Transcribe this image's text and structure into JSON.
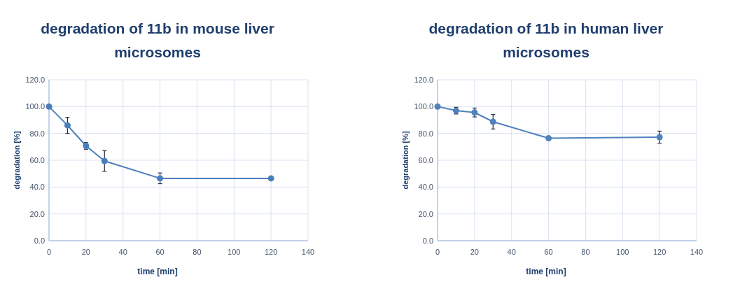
{
  "chart_data": [
    {
      "type": "line",
      "title": "degradation of 11b in mouse liver microsomes",
      "xlabel": "time [min]",
      "ylabel": "degradation [%]",
      "x": [
        0,
        10,
        20,
        30,
        60,
        120
      ],
      "series": [
        {
          "color": "#4a7ebb",
          "values": [
            100,
            86,
            70.7,
            59.5,
            46.5,
            46.5
          ],
          "errors": [
            null,
            6,
            2.5,
            7.7,
            4,
            null
          ]
        }
      ],
      "xlim": [
        0,
        140
      ],
      "xticks": [
        0,
        20,
        40,
        60,
        80,
        100,
        120,
        140
      ],
      "ylim": [
        0,
        120
      ],
      "yticks": [
        {
          "value": 0,
          "label": "0.0"
        },
        {
          "value": 20,
          "label": "20.0"
        },
        {
          "value": 40,
          "label": "40.0"
        },
        {
          "value": 60,
          "label": "60.0"
        },
        {
          "value": 80,
          "label": "80.0"
        },
        {
          "value": 100,
          "label": "100.0"
        },
        {
          "value": 120,
          "label": "120.0"
        }
      ],
      "grid": true,
      "marker": "circle",
      "line_style": "solid"
    },
    {
      "type": "line",
      "title": "degradation of 11b in human liver microsomes",
      "xlabel": "time [min]",
      "ylabel": "degradation [%]",
      "x": [
        0,
        10,
        20,
        30,
        60,
        120
      ],
      "series": [
        {
          "color": "#4f81bd",
          "values": [
            100,
            97,
            95.6,
            88.7,
            76.4,
            77.2
          ],
          "errors": [
            null,
            2.5,
            3.3,
            5.4,
            null,
            4.5
          ]
        }
      ],
      "xlim": [
        0,
        140
      ],
      "xticks": [
        0,
        20,
        40,
        60,
        80,
        100,
        120,
        140
      ],
      "ylim": [
        0,
        120
      ],
      "yticks": [
        {
          "value": 0,
          "label": "0.0"
        },
        {
          "value": 20,
          "label": "20.0"
        },
        {
          "value": 40,
          "label": "40.0"
        },
        {
          "value": 60,
          "label": "60.0"
        },
        {
          "value": 80,
          "label": "80.0"
        },
        {
          "value": 100,
          "label": "100.0"
        },
        {
          "value": 120,
          "label": "120.0"
        }
      ],
      "grid": true,
      "marker": "circle",
      "line_style": "solid"
    }
  ]
}
